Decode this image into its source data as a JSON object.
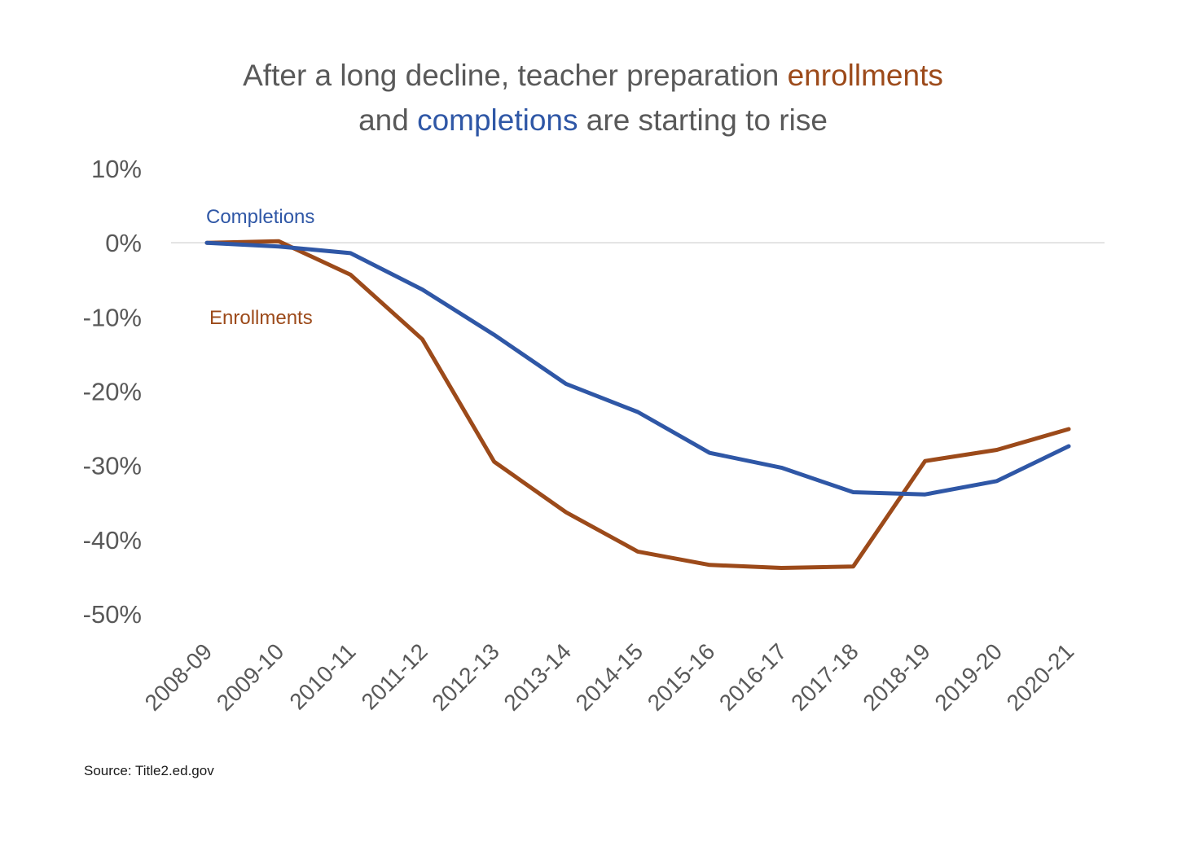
{
  "chart_data": {
    "type": "line",
    "title": {
      "line1": [
        {
          "text": "After a long decline, teacher preparation ",
          "color": "#595959"
        },
        {
          "text": "enrollments",
          "color": "#9c4a1a"
        }
      ],
      "line2": [
        {
          "text": "and ",
          "color": "#595959"
        },
        {
          "text": "completions",
          "color": "#2f57a6"
        },
        {
          "text": " are starting to rise",
          "color": "#595959"
        }
      ]
    },
    "categories": [
      "2008-09",
      "2009-10",
      "2010-11",
      "2011-12",
      "2012-13",
      "2013-14",
      "2014-15",
      "2015-16",
      "2016-17",
      "2017-18",
      "2018-19",
      "2019-20",
      "2020-21"
    ],
    "y_ticks": [
      "10%",
      "0%",
      "-10%",
      "-20%",
      "-30%",
      "-40%",
      "-50%"
    ],
    "y_tick_values": [
      10,
      0,
      -10,
      -20,
      -30,
      -40,
      -50
    ],
    "ylim": [
      -50,
      10
    ],
    "zero_line": true,
    "series": [
      {
        "name": "Completions",
        "color": "#2f57a6",
        "values": [
          0,
          -0.5,
          -1.4,
          -6.3,
          -12.4,
          -19.0,
          -22.8,
          -28.3,
          -30.3,
          -33.6,
          -33.9,
          -32.1,
          -27.4
        ]
      },
      {
        "name": "Enrollments",
        "color": "#9c4a1a",
        "values": [
          0,
          0.2,
          -4.3,
          -13.0,
          -29.5,
          -36.3,
          -41.6,
          -43.4,
          -43.8,
          -43.6,
          -29.4,
          -27.9,
          -25.1
        ]
      }
    ],
    "source": "Source: Title2.ed.gov"
  }
}
